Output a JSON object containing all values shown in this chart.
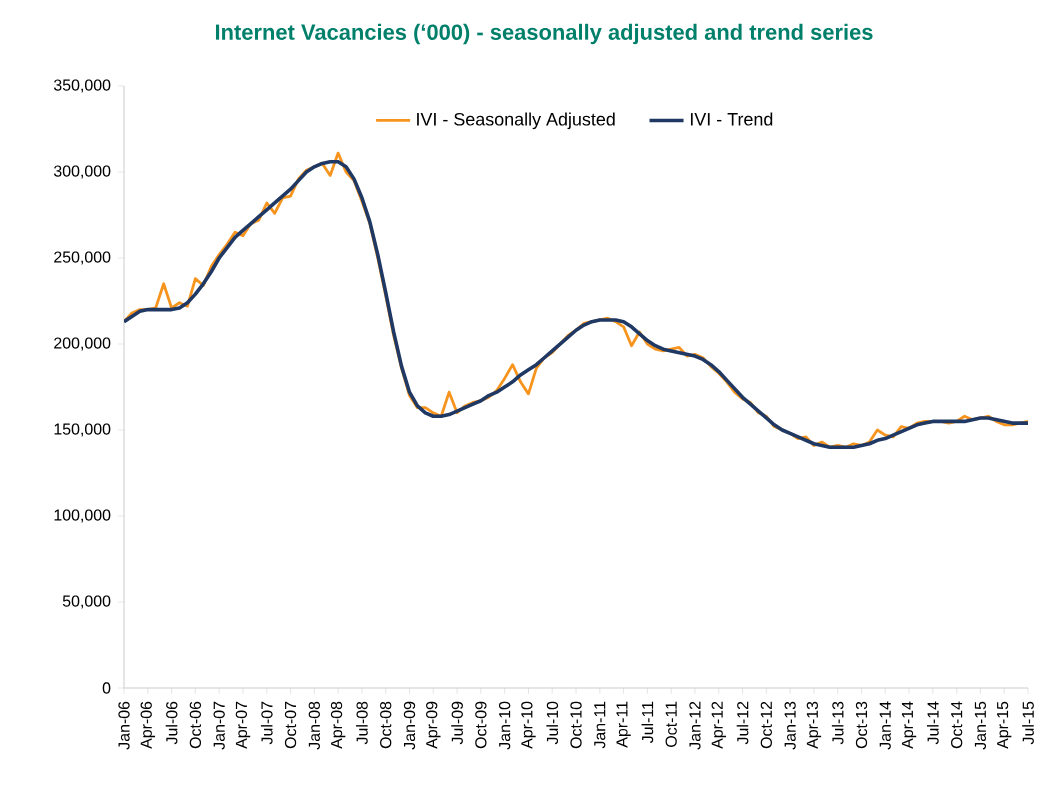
{
  "chart_data": {
    "type": "line",
    "title": "Internet Vacancies (‘000) - seasonally adjusted and trend series",
    "categories": [
      "Jan-06",
      null,
      null,
      "Apr-06",
      null,
      null,
      "Jul-06",
      null,
      null,
      "Oct-06",
      null,
      null,
      "Jan-07",
      null,
      null,
      "Apr-07",
      null,
      null,
      "Jul-07",
      null,
      null,
      "Oct-07",
      null,
      null,
      "Jan-08",
      null,
      null,
      "Apr-08",
      null,
      null,
      "Jul-08",
      null,
      null,
      "Oct-08",
      null,
      null,
      "Jan-09",
      null,
      null,
      "Apr-09",
      null,
      null,
      "Jul-09",
      null,
      null,
      "Oct-09",
      null,
      null,
      "Jan-10",
      null,
      null,
      "Apr-10",
      null,
      null,
      "Jul-10",
      null,
      null,
      "Oct-10",
      null,
      null,
      "Jan-11",
      null,
      null,
      "Apr-11",
      null,
      null,
      "Jul-11",
      null,
      null,
      "Oct-11",
      null,
      null,
      "Jan-12",
      null,
      null,
      "Apr-12",
      null,
      null,
      "Jul-12",
      null,
      null,
      "Oct-12",
      null,
      null,
      "Jan-13",
      null,
      null,
      "Apr-13",
      null,
      null,
      "Jul-13",
      null,
      null,
      "Oct-13",
      null,
      null,
      "Jan-14",
      null,
      null,
      "Apr-14",
      null,
      null,
      "Jul-14",
      null,
      null,
      "Oct-14",
      null,
      null,
      "Jan-15",
      null,
      null,
      "Apr-15",
      null,
      null,
      "Jul-15"
    ],
    "series": [
      {
        "name": "IVI - Seasonally Adjusted",
        "color": "#f7941d",
        "values": [
          213000,
          218000,
          220000,
          220000,
          221000,
          235000,
          221000,
          224000,
          222000,
          238000,
          234000,
          245000,
          252000,
          258000,
          265000,
          263000,
          270000,
          272000,
          282000,
          276000,
          285000,
          286000,
          296000,
          301000,
          303000,
          305000,
          298000,
          311000,
          300000,
          295000,
          283000,
          270000,
          250000,
          228000,
          205000,
          186000,
          170000,
          163000,
          163000,
          160000,
          158000,
          172000,
          160000,
          164000,
          166000,
          167000,
          169000,
          173000,
          180000,
          188000,
          178000,
          171000,
          186000,
          192000,
          195000,
          200000,
          205000,
          208000,
          212000,
          213000,
          214000,
          215000,
          213000,
          210000,
          199000,
          207000,
          200000,
          197000,
          196000,
          197000,
          198000,
          193000,
          194000,
          192000,
          187000,
          183000,
          178000,
          172000,
          168000,
          166000,
          160000,
          158000,
          152000,
          150000,
          148000,
          145000,
          146000,
          141000,
          143000,
          140000,
          141000,
          140000,
          142000,
          141000,
          143000,
          150000,
          147000,
          146000,
          152000,
          151000,
          154000,
          155000,
          155000,
          155000,
          154000,
          155000,
          158000,
          156000,
          157000,
          158000,
          155000,
          153000,
          153000,
          154000,
          155000
        ]
      },
      {
        "name": "IVI - Trend",
        "color": "#1f3864",
        "values": [
          213000,
          216000,
          219000,
          220000,
          220000,
          220000,
          220000,
          221000,
          224000,
          229000,
          235000,
          242000,
          250000,
          256000,
          262000,
          266000,
          270000,
          274000,
          278000,
          282000,
          286000,
          290000,
          295000,
          300000,
          303000,
          305000,
          306000,
          306000,
          303000,
          296000,
          285000,
          271000,
          252000,
          230000,
          207000,
          187000,
          172000,
          164000,
          160000,
          158000,
          158000,
          159000,
          161000,
          163000,
          165000,
          167000,
          170000,
          172000,
          175000,
          178000,
          182000,
          185000,
          188000,
          192000,
          196000,
          200000,
          204000,
          208000,
          211000,
          213000,
          214000,
          214000,
          214000,
          213000,
          210000,
          206000,
          202000,
          199000,
          197000,
          196000,
          195000,
          194000,
          193000,
          191000,
          188000,
          184000,
          179000,
          174000,
          169000,
          165000,
          161000,
          157000,
          153000,
          150000,
          148000,
          146000,
          144000,
          142000,
          141000,
          140000,
          140000,
          140000,
          140000,
          141000,
          142000,
          144000,
          145000,
          147000,
          149000,
          151000,
          153000,
          154000,
          155000,
          155000,
          155000,
          155000,
          155000,
          156000,
          157000,
          157000,
          156000,
          155000,
          154000,
          154000,
          154000
        ]
      }
    ],
    "ylim": [
      0,
      350000
    ],
    "yticks": [
      {
        "value": 0,
        "label": "0"
      },
      {
        "value": 50000,
        "label": "50,000"
      },
      {
        "value": 100000,
        "label": "100,000"
      },
      {
        "value": 150000,
        "label": "150,000"
      },
      {
        "value": 200000,
        "label": "200,000"
      },
      {
        "value": 250000,
        "label": "250,000"
      },
      {
        "value": 300000,
        "label": "300,000"
      },
      {
        "value": 350000,
        "label": "350,000"
      }
    ],
    "legend": "top"
  }
}
